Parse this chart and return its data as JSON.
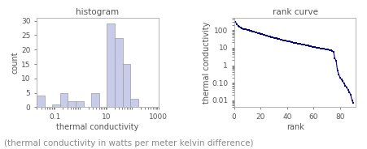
{
  "hist_title": "histogram",
  "hist_xlabel": "thermal conductivity",
  "hist_ylabel": "count",
  "hist_bar_edges": [
    0.02,
    0.04,
    0.08,
    0.16,
    0.32,
    0.64,
    1.28,
    2.56,
    5.12,
    10.24,
    20.48,
    40.96,
    81.92,
    163.84,
    327.68,
    655.36,
    1000.0
  ],
  "hist_bar_counts": [
    4,
    0,
    1,
    5,
    2,
    2,
    0,
    5,
    0,
    29,
    24,
    15,
    3,
    0,
    0,
    0
  ],
  "hist_xlim": [
    0.02,
    1000
  ],
  "hist_ylim": [
    0,
    31
  ],
  "hist_bar_color": "#c8cce8",
  "hist_bar_edgecolor": "#9999aa",
  "rank_title": "rank curve",
  "rank_xlabel": "rank",
  "rank_ylabel": "thermal conductivity",
  "rank_xlim": [
    0,
    92
  ],
  "rank_ylim_log": [
    0.004,
    500
  ],
  "rank_line_color": "#000080",
  "rank_yticks": [
    0.01,
    0.1,
    1,
    10,
    100
  ],
  "rank_ytick_labels": [
    "0.01",
    "0.10",
    "1",
    "10",
    "100"
  ],
  "rank_xticks": [
    0,
    20,
    40,
    60,
    80
  ],
  "rank_x": [
    1,
    2,
    3,
    4,
    5,
    6,
    7,
    8,
    9,
    10,
    11,
    12,
    13,
    14,
    15,
    16,
    17,
    18,
    19,
    20,
    21,
    22,
    23,
    24,
    25,
    26,
    27,
    28,
    29,
    30,
    31,
    32,
    33,
    34,
    35,
    36,
    37,
    38,
    39,
    40,
    41,
    42,
    43,
    44,
    45,
    46,
    47,
    48,
    49,
    50,
    51,
    52,
    53,
    54,
    55,
    56,
    57,
    58,
    59,
    60,
    61,
    62,
    63,
    64,
    65,
    66,
    67,
    68,
    69,
    70,
    71,
    72,
    73,
    74,
    75,
    76,
    77,
    78,
    79,
    80,
    81,
    82,
    83,
    84,
    85,
    86,
    87,
    88,
    89,
    90
  ],
  "rank_y": [
    300,
    220,
    180,
    160,
    140,
    130,
    120,
    115,
    110,
    105,
    100,
    95,
    90,
    85,
    80,
    76,
    72,
    68,
    65,
    62,
    58,
    55,
    52,
    50,
    47,
    45,
    43,
    41,
    39,
    37,
    35,
    34,
    32,
    31,
    30,
    28,
    27,
    26,
    25,
    24,
    23,
    22,
    21,
    20,
    19,
    18.5,
    18,
    17,
    16.5,
    16,
    15.5,
    15,
    14.5,
    14,
    13.5,
    13,
    12.5,
    12,
    11.5,
    11,
    10.5,
    10,
    9.8,
    9.5,
    9.2,
    9.0,
    8.8,
    8.5,
    8.2,
    8.0,
    7.8,
    7.5,
    7.2,
    6.8,
    6.0,
    2.5,
    1.8,
    0.5,
    0.3,
    0.2,
    0.15,
    0.12,
    0.09,
    0.07,
    0.055,
    0.04,
    0.03,
    0.02,
    0.01,
    0.007
  ],
  "caption": "(thermal conductivity in watts per meter kelvin difference)",
  "caption_color": "#888888",
  "caption_fontsize": 7.5
}
